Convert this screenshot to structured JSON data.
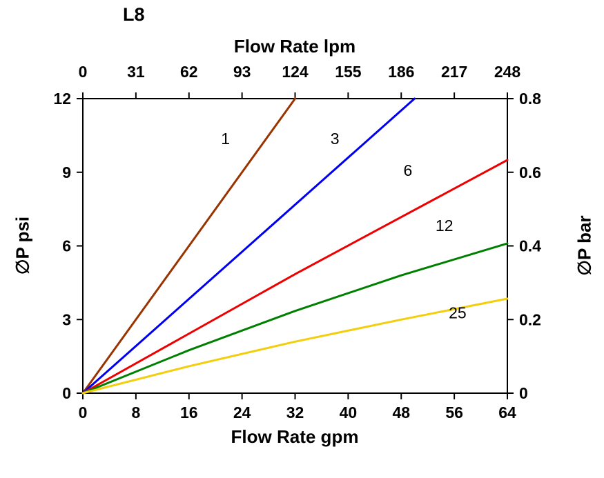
{
  "page": {
    "background": "#ffffff"
  },
  "chart_data": {
    "type": "line",
    "title": "L8",
    "x_top": {
      "label": "Flow Rate lpm",
      "range": [
        0,
        248
      ],
      "ticks": [
        0,
        31,
        62,
        93,
        124,
        155,
        186,
        217,
        248
      ]
    },
    "x_bottom": {
      "label": "Flow Rate gpm",
      "range": [
        0,
        64
      ],
      "ticks": [
        0,
        8,
        16,
        24,
        32,
        40,
        48,
        56,
        64
      ]
    },
    "y_left": {
      "label": "∅P psi",
      "range": [
        0,
        12
      ],
      "ticks": [
        0,
        3,
        6,
        9,
        12
      ]
    },
    "y_right": {
      "label": "∅P bar",
      "range": [
        0,
        0.8
      ],
      "ticks": [
        0,
        0.2,
        0.4,
        0.6,
        0.8
      ]
    },
    "grid": false,
    "legend": "none-inline-labels",
    "axis_color": "#000000",
    "text_color": "#000000",
    "series": [
      {
        "name": "1",
        "color": "#993300",
        "points": [
          [
            0,
            0
          ],
          [
            32,
            12
          ]
        ],
        "label_at": [
          21.5,
          10.15
        ]
      },
      {
        "name": "3",
        "color": "#0000ee",
        "points": [
          [
            0,
            0
          ],
          [
            50,
            12
          ]
        ],
        "label_at": [
          38.0,
          10.15
        ]
      },
      {
        "name": "6",
        "color": "#ee0000",
        "points": [
          [
            0,
            0
          ],
          [
            32,
            4.85
          ],
          [
            64,
            9.5
          ]
        ],
        "label_at": [
          49.0,
          8.85
        ]
      },
      {
        "name": "12",
        "color": "#008000",
        "points": [
          [
            0,
            0
          ],
          [
            16,
            1.75
          ],
          [
            32,
            3.35
          ],
          [
            48,
            4.8
          ],
          [
            64,
            6.1
          ]
        ],
        "label_at": [
          54.5,
          6.6
        ]
      },
      {
        "name": "25",
        "color": "#f2ce0d",
        "points": [
          [
            0,
            0
          ],
          [
            16,
            1.1
          ],
          [
            32,
            2.1
          ],
          [
            48,
            3.0
          ],
          [
            64,
            3.85
          ]
        ],
        "label_at": [
          56.5,
          3.05
        ]
      }
    ]
  }
}
